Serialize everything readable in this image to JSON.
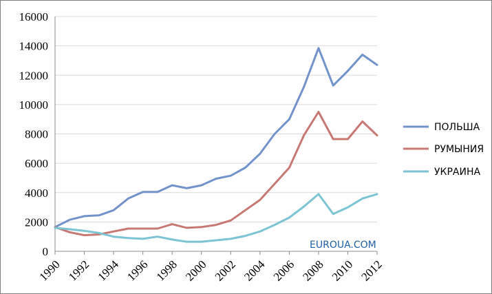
{
  "chart_data": {
    "type": "line",
    "title": "",
    "xlabel": "",
    "ylabel": "",
    "ylim": [
      0,
      16000
    ],
    "xlim": [
      1990,
      2012
    ],
    "yticks": [
      "0",
      "2000",
      "4000",
      "6000",
      "8000",
      "10000",
      "12000",
      "14000",
      "16000"
    ],
    "xticks": [
      "1990",
      "1992",
      "1994",
      "1996",
      "1998",
      "2000",
      "2002",
      "2004",
      "2006",
      "2008",
      "2010",
      "2012"
    ],
    "x": [
      1990,
      1991,
      1992,
      1993,
      1994,
      1995,
      1996,
      1997,
      1998,
      1999,
      2000,
      2001,
      2002,
      2003,
      2004,
      2005,
      2006,
      2007,
      2008,
      2009,
      2010,
      2011,
      2012
    ],
    "grid": "horizontal",
    "legend_position": "right",
    "series": [
      {
        "name": "ПОЛЬША",
        "color": "#7292cb",
        "values": [
          1650,
          2150,
          2400,
          2450,
          2800,
          3600,
          4050,
          4050,
          4500,
          4300,
          4500,
          4950,
          5150,
          5700,
          6650,
          8000,
          9000,
          11200,
          13850,
          11300,
          12300,
          13400,
          12700
        ]
      },
      {
        "name": "РУМЫНИЯ",
        "color": "#c87872",
        "values": [
          1650,
          1300,
          1100,
          1150,
          1350,
          1550,
          1550,
          1550,
          1850,
          1600,
          1650,
          1800,
          2100,
          2800,
          3500,
          4600,
          5700,
          7900,
          9500,
          7650,
          7650,
          8850,
          7900
        ]
      },
      {
        "name": "УКРАИНА",
        "color": "#7cc3d3",
        "values": [
          1600,
          1500,
          1400,
          1250,
          1000,
          900,
          850,
          1000,
          800,
          650,
          650,
          750,
          850,
          1050,
          1350,
          1800,
          2300,
          3050,
          3900,
          2550,
          3000,
          3600,
          3900
        ]
      }
    ]
  },
  "watermark": {
    "text": "EUROUA.COM",
    "color": "#1f5fa8"
  }
}
